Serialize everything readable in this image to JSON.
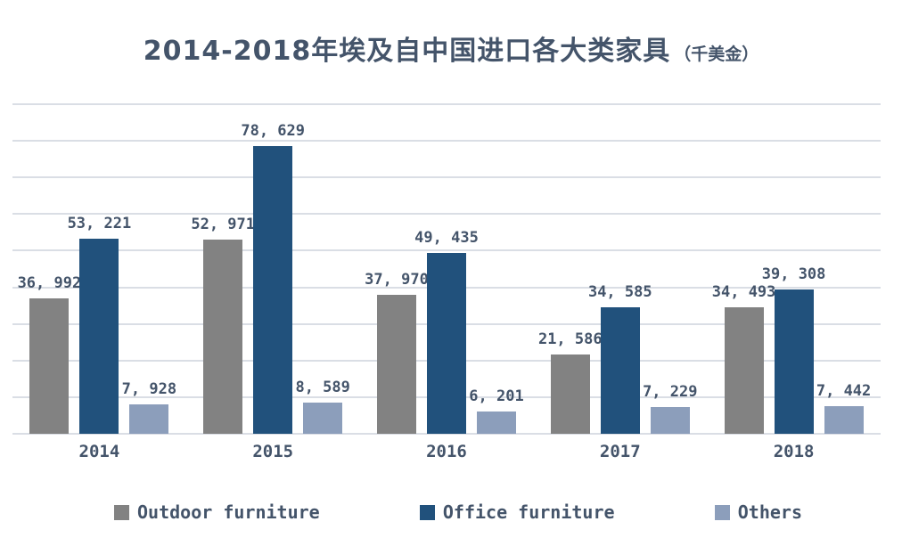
{
  "colors": {
    "text": "#44546A",
    "gridline": "#DADEE5",
    "background": "#FFFFFF",
    "outdoor_furniture": "#828282",
    "office_furniture": "#21517C",
    "others": "#8C9EBB"
  },
  "chart_data": {
    "type": "bar",
    "title": "2014-2018年埃及自中国进口各大类家具",
    "title_unit": "（千美金）",
    "categories": [
      "2014",
      "2015",
      "2016",
      "2017",
      "2018"
    ],
    "series": [
      {
        "name": "Outdoor furniture",
        "color": "#828282",
        "values": [
          36992,
          52971,
          37970,
          21586,
          34493
        ],
        "labels": [
          "36, 992",
          "52, 971",
          "37, 970",
          "21, 586",
          "34, 493"
        ]
      },
      {
        "name": "Office furniture",
        "color": "#21517C",
        "values": [
          53221,
          78629,
          49435,
          34585,
          39308
        ],
        "labels": [
          "53, 221",
          "78, 629",
          "49, 435",
          "34, 585",
          "39, 308"
        ]
      },
      {
        "name": "Others",
        "color": "#8C9EBB",
        "values": [
          7928,
          8589,
          6201,
          7229,
          7442
        ],
        "labels": [
          "7, 928",
          "8, 589",
          "6, 201",
          "7, 229",
          "7, 442"
        ]
      }
    ],
    "ylim": [
      0,
      90000
    ],
    "gridline_step": 10000,
    "grid": true,
    "y_axis_labels_visible": false,
    "data_labels": true,
    "legend_position": "bottom"
  }
}
